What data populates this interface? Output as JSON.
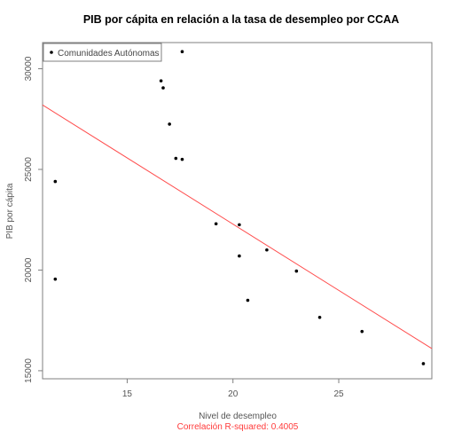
{
  "chart_data": {
    "type": "scatter",
    "title": "PIB por cápita en relación a la tasa de desempleo por CCAA",
    "xlabel": "Nivel de desempleo",
    "ylabel": "PIB por cápita",
    "xlim": [
      11.0,
      29.4
    ],
    "ylim": [
      14600,
      31300
    ],
    "x_ticks": [
      15,
      20,
      25
    ],
    "y_ticks": [
      15000,
      20000,
      25000,
      30000
    ],
    "x_tick_labels": [
      "15",
      "20",
      "25"
    ],
    "y_tick_labels": [
      "15000",
      "20000",
      "25000",
      "30000"
    ],
    "grid": false,
    "legend": {
      "position": "top-left",
      "entries": [
        "Comunidades Autónomas"
      ]
    },
    "series": [
      {
        "name": "Comunidades Autónomas",
        "color": "#000000",
        "points": [
          {
            "x": 11.6,
            "y": 24400
          },
          {
            "x": 11.6,
            "y": 19550
          },
          {
            "x": 16.6,
            "y": 29400
          },
          {
            "x": 16.7,
            "y": 29050
          },
          {
            "x": 17.0,
            "y": 27250
          },
          {
            "x": 17.6,
            "y": 30850
          },
          {
            "x": 17.3,
            "y": 25550
          },
          {
            "x": 17.6,
            "y": 25500
          },
          {
            "x": 19.2,
            "y": 22300
          },
          {
            "x": 20.3,
            "y": 22250
          },
          {
            "x": 20.3,
            "y": 20700
          },
          {
            "x": 20.7,
            "y": 18500
          },
          {
            "x": 21.6,
            "y": 21000
          },
          {
            "x": 23.0,
            "y": 19950
          },
          {
            "x": 24.1,
            "y": 17650
          },
          {
            "x": 26.1,
            "y": 16950
          },
          {
            "x": 29.0,
            "y": 15350
          }
        ]
      }
    ],
    "regression_line": {
      "color": "#ff4d4d",
      "x": [
        11.0,
        29.4
      ],
      "y": [
        28200,
        16100
      ]
    },
    "annotation": {
      "text": "Correlación R-squared:  0.4005",
      "color": "#ff3b3b"
    }
  }
}
